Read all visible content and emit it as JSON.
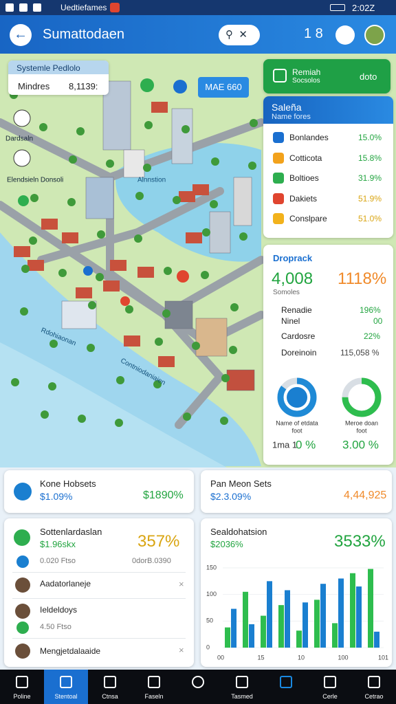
{
  "status_bar": {
    "app": "Uedtiefames",
    "time": "2:02Z"
  },
  "header": {
    "title": "Sumattodaen",
    "count": "1 8"
  },
  "map": {
    "info_card": {
      "title": "Systemle Pedlolo",
      "label": "Mindres",
      "value": "8,1139:"
    },
    "tag": "MAE 660",
    "labels": [
      "Dardsaln",
      "Elendsieln Donsoli",
      "Alnnstion",
      "Rdohiaonan",
      "Contniodaniaien"
    ]
  },
  "promo": {
    "title": "Remiah",
    "subtitle": "Socsolos",
    "action": "doto"
  },
  "sales": {
    "title": "Saleña",
    "subtitle": "Name fores",
    "rows": [
      {
        "name": "Bonlandes",
        "value": "15.0%"
      },
      {
        "name": "Cotticota",
        "value": "15.8%"
      },
      {
        "name": "Boltioes",
        "value": "31.9%"
      },
      {
        "name": "Dakiets",
        "value": "51.9%"
      },
      {
        "name": "Conslpare",
        "value": "51.0%"
      }
    ]
  },
  "stats": {
    "title": "Droprack",
    "primary": "4,008",
    "secondary": "1118%",
    "caption": "Somoles",
    "rows": [
      {
        "name": "Renadie",
        "sub": "Ninel",
        "value": "196%",
        "sub_value": "00"
      },
      {
        "name": "Cardosre",
        "value": "22%"
      },
      {
        "name": "Doreinoin",
        "value": "115,058 %"
      }
    ],
    "donuts": [
      {
        "label": "Name of etdata",
        "sub": "foot",
        "value": 85,
        "color": "#1f8ad6",
        "footer": "1ma 1",
        "footer_value": "0 %"
      },
      {
        "label": "Meroe doan",
        "sub": "foot",
        "value": 75,
        "color": "#2ebd4e",
        "footer_value": "3.00 %"
      }
    ]
  },
  "summary_cards": [
    {
      "title": "Kone Hobsets",
      "value": "$1.09%",
      "delta": "$1890%"
    },
    {
      "title": "Pan Meon Sets",
      "value": "$2.3.09%",
      "delta": "4,44,925"
    }
  ],
  "activity": {
    "title": "Sottenlardaslan",
    "value": "$1.96skx",
    "delta": "357%",
    "meta_left": "0.020 Ftso",
    "meta_right": "0dorB.0390",
    "rows": [
      {
        "name": "Aadatorlaneje"
      },
      {
        "name": "Ieldeldoys",
        "meta": "4.50 Ftso"
      },
      {
        "name": "Mengjetdalaaide"
      }
    ]
  },
  "bar_chart": {
    "type": "bar",
    "title": "Sealdohatsion",
    "value": "$2036%",
    "delta": "3533%",
    "ylim": [
      0,
      150
    ],
    "yticks": [
      0,
      50,
      100,
      150
    ],
    "x_labels": [
      "00",
      "15",
      "10",
      "100",
      "101"
    ],
    "series": [
      {
        "color": "#2ebd4e",
        "values": [
          38,
          105,
          60,
          80,
          32,
          90,
          46,
          140,
          148
        ]
      },
      {
        "color": "#1a7fd0",
        "values": [
          73,
          44,
          125,
          108,
          85,
          120,
          130,
          115,
          30
        ]
      }
    ]
  },
  "nav": {
    "items": [
      "Poline",
      "Stentoal",
      "Ctnsa",
      "Faseln",
      "Tasmed",
      "Cerle",
      "Cetrao"
    ]
  }
}
